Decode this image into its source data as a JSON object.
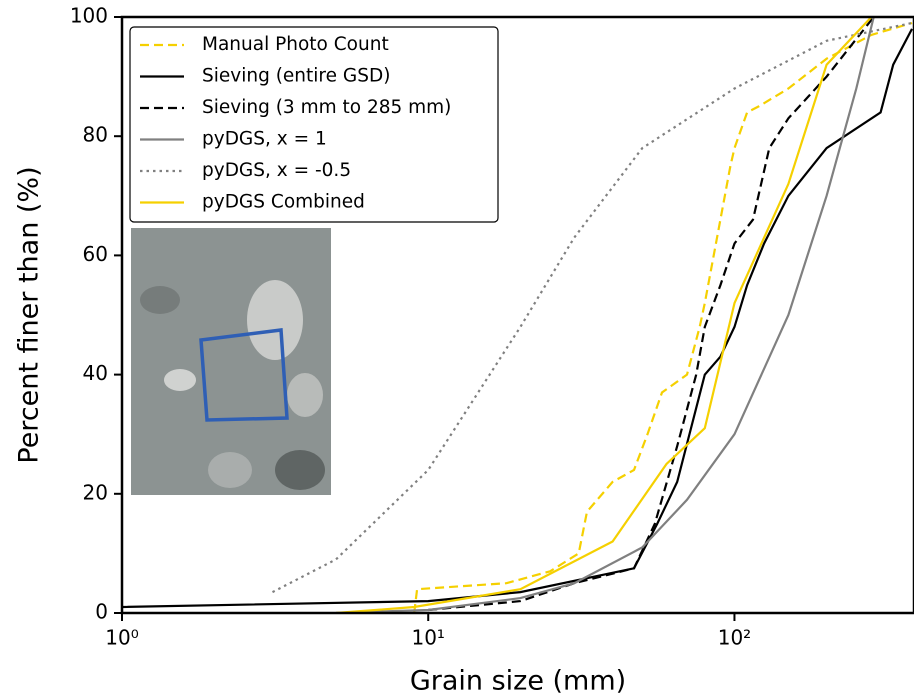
{
  "chart_data": {
    "type": "line",
    "xlabel": "Grain size (mm)",
    "ylabel": "Percent finer than (%)",
    "xscale": "log",
    "xlim": [
      1,
      380
    ],
    "ylim": [
      0,
      100
    ],
    "xticks": [
      {
        "value": 1,
        "label": "10⁰"
      },
      {
        "value": 10,
        "label": "10¹"
      },
      {
        "value": 100,
        "label": "10²"
      }
    ],
    "yticks": [
      0,
      20,
      40,
      60,
      80,
      100
    ],
    "legend": "upper left",
    "series": [
      {
        "name": "Manual Photo Count",
        "color": "#f5d000",
        "linestyle": "dashed",
        "x": [
          9,
          9.2,
          18,
          25,
          31,
          33,
          40,
          47,
          52,
          58,
          70,
          77,
          80,
          90,
          97,
          100,
          110,
          120,
          150,
          200,
          280,
          380
        ],
        "values": [
          0,
          4,
          5,
          7,
          10,
          17,
          22,
          24,
          30,
          37,
          40,
          48,
          52,
          66,
          75,
          78,
          84,
          85,
          88,
          93,
          97,
          99
        ]
      },
      {
        "name": "Sieving (entire GSD)",
        "color": "#000000",
        "linestyle": "solid",
        "x": [
          1,
          10,
          20,
          47,
          56,
          65,
          80,
          90,
          100,
          110,
          125,
          150,
          200,
          300,
          330,
          380
        ],
        "values": [
          1,
          2,
          3.5,
          7.5,
          15,
          22,
          40,
          43,
          48,
          55,
          62,
          70,
          78,
          84,
          92,
          98
        ]
      },
      {
        "name": "Sieving (3 mm to 285 mm)",
        "color": "#000000",
        "linestyle": "dashed",
        "x": [
          10,
          20,
          30,
          47,
          55,
          65,
          75,
          80,
          90,
          100,
          115,
          130,
          150,
          200,
          285
        ],
        "values": [
          0.5,
          2,
          5,
          7.5,
          15,
          28,
          40,
          48,
          55,
          62,
          66,
          78,
          83,
          90,
          100
        ]
      },
      {
        "name": "pyDGS, x = 1",
        "color": "#808080",
        "linestyle": "solid",
        "x": [
          5,
          10,
          20,
          30,
          50,
          70,
          100,
          150,
          200,
          250,
          285
        ],
        "values": [
          0,
          0.5,
          2.5,
          5,
          11,
          19,
          30,
          50,
          70,
          88,
          100
        ]
      },
      {
        "name": "pyDGS, x = -0.5",
        "color": "#808080",
        "linestyle": "dotted",
        "x": [
          3.1,
          5,
          10,
          20,
          30,
          50,
          100,
          200,
          380
        ],
        "values": [
          3.5,
          9,
          24,
          48,
          63,
          78,
          88,
          96,
          99
        ]
      },
      {
        "name": "pyDGS Combined",
        "color": "#f5d000",
        "linestyle": "solid",
        "x": [
          5,
          9,
          20,
          40,
          60,
          80,
          100,
          150,
          200,
          280
        ],
        "values": [
          0,
          1,
          4,
          12,
          25,
          31,
          52,
          72,
          92,
          100
        ]
      }
    ]
  }
}
